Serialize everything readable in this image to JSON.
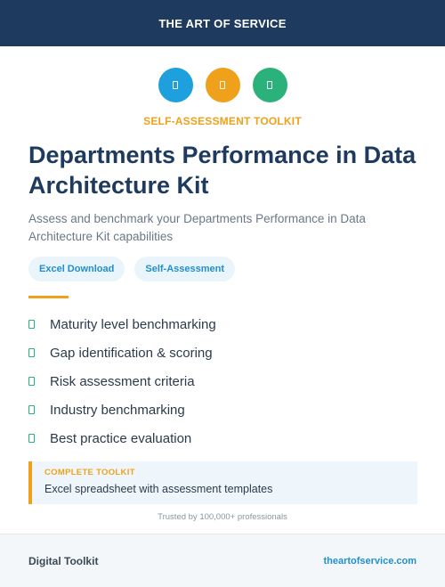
{
  "header": {
    "title": "THE ART OF SERVICE",
    "background": "#1e3a5f"
  },
  "icons": [
    {
      "name": "document-icon",
      "color": "#1ea0df"
    },
    {
      "name": "document-icon",
      "color": "#f0a11b"
    },
    {
      "name": "document-icon",
      "color": "#2bb17a"
    }
  ],
  "kicker": {
    "text": "SELF-ASSESSMENT TOOLKIT",
    "color": "#f0a11b"
  },
  "title": "Departments Performance in Data Architecture Kit",
  "subtitle": "Assess and benchmark your Departments Performance in Data Architecture Kit capabilities",
  "tags": [
    {
      "label": "Excel Download"
    },
    {
      "label": "Self-Assessment"
    }
  ],
  "accent_blue": "#1e8fd0",
  "accent_orange": "#f0a11b",
  "features": [
    {
      "text": "Maturity level benchmarking",
      "icon": "check-icon"
    },
    {
      "text": "Gap identification & scoring",
      "icon": "check-icon"
    },
    {
      "text": "Risk assessment criteria",
      "icon": "check-icon"
    },
    {
      "text": "Industry benchmarking",
      "icon": "check-icon"
    },
    {
      "text": "Best practice evaluation",
      "icon": "check-icon"
    }
  ],
  "callout": {
    "label": "COMPLETE TOOLKIT",
    "text": "Excel spreadsheet with assessment templates"
  },
  "trust": "Trusted by 100,000+ professionals",
  "footer": {
    "left": "Digital Toolkit",
    "right": "theartofservice.com"
  }
}
